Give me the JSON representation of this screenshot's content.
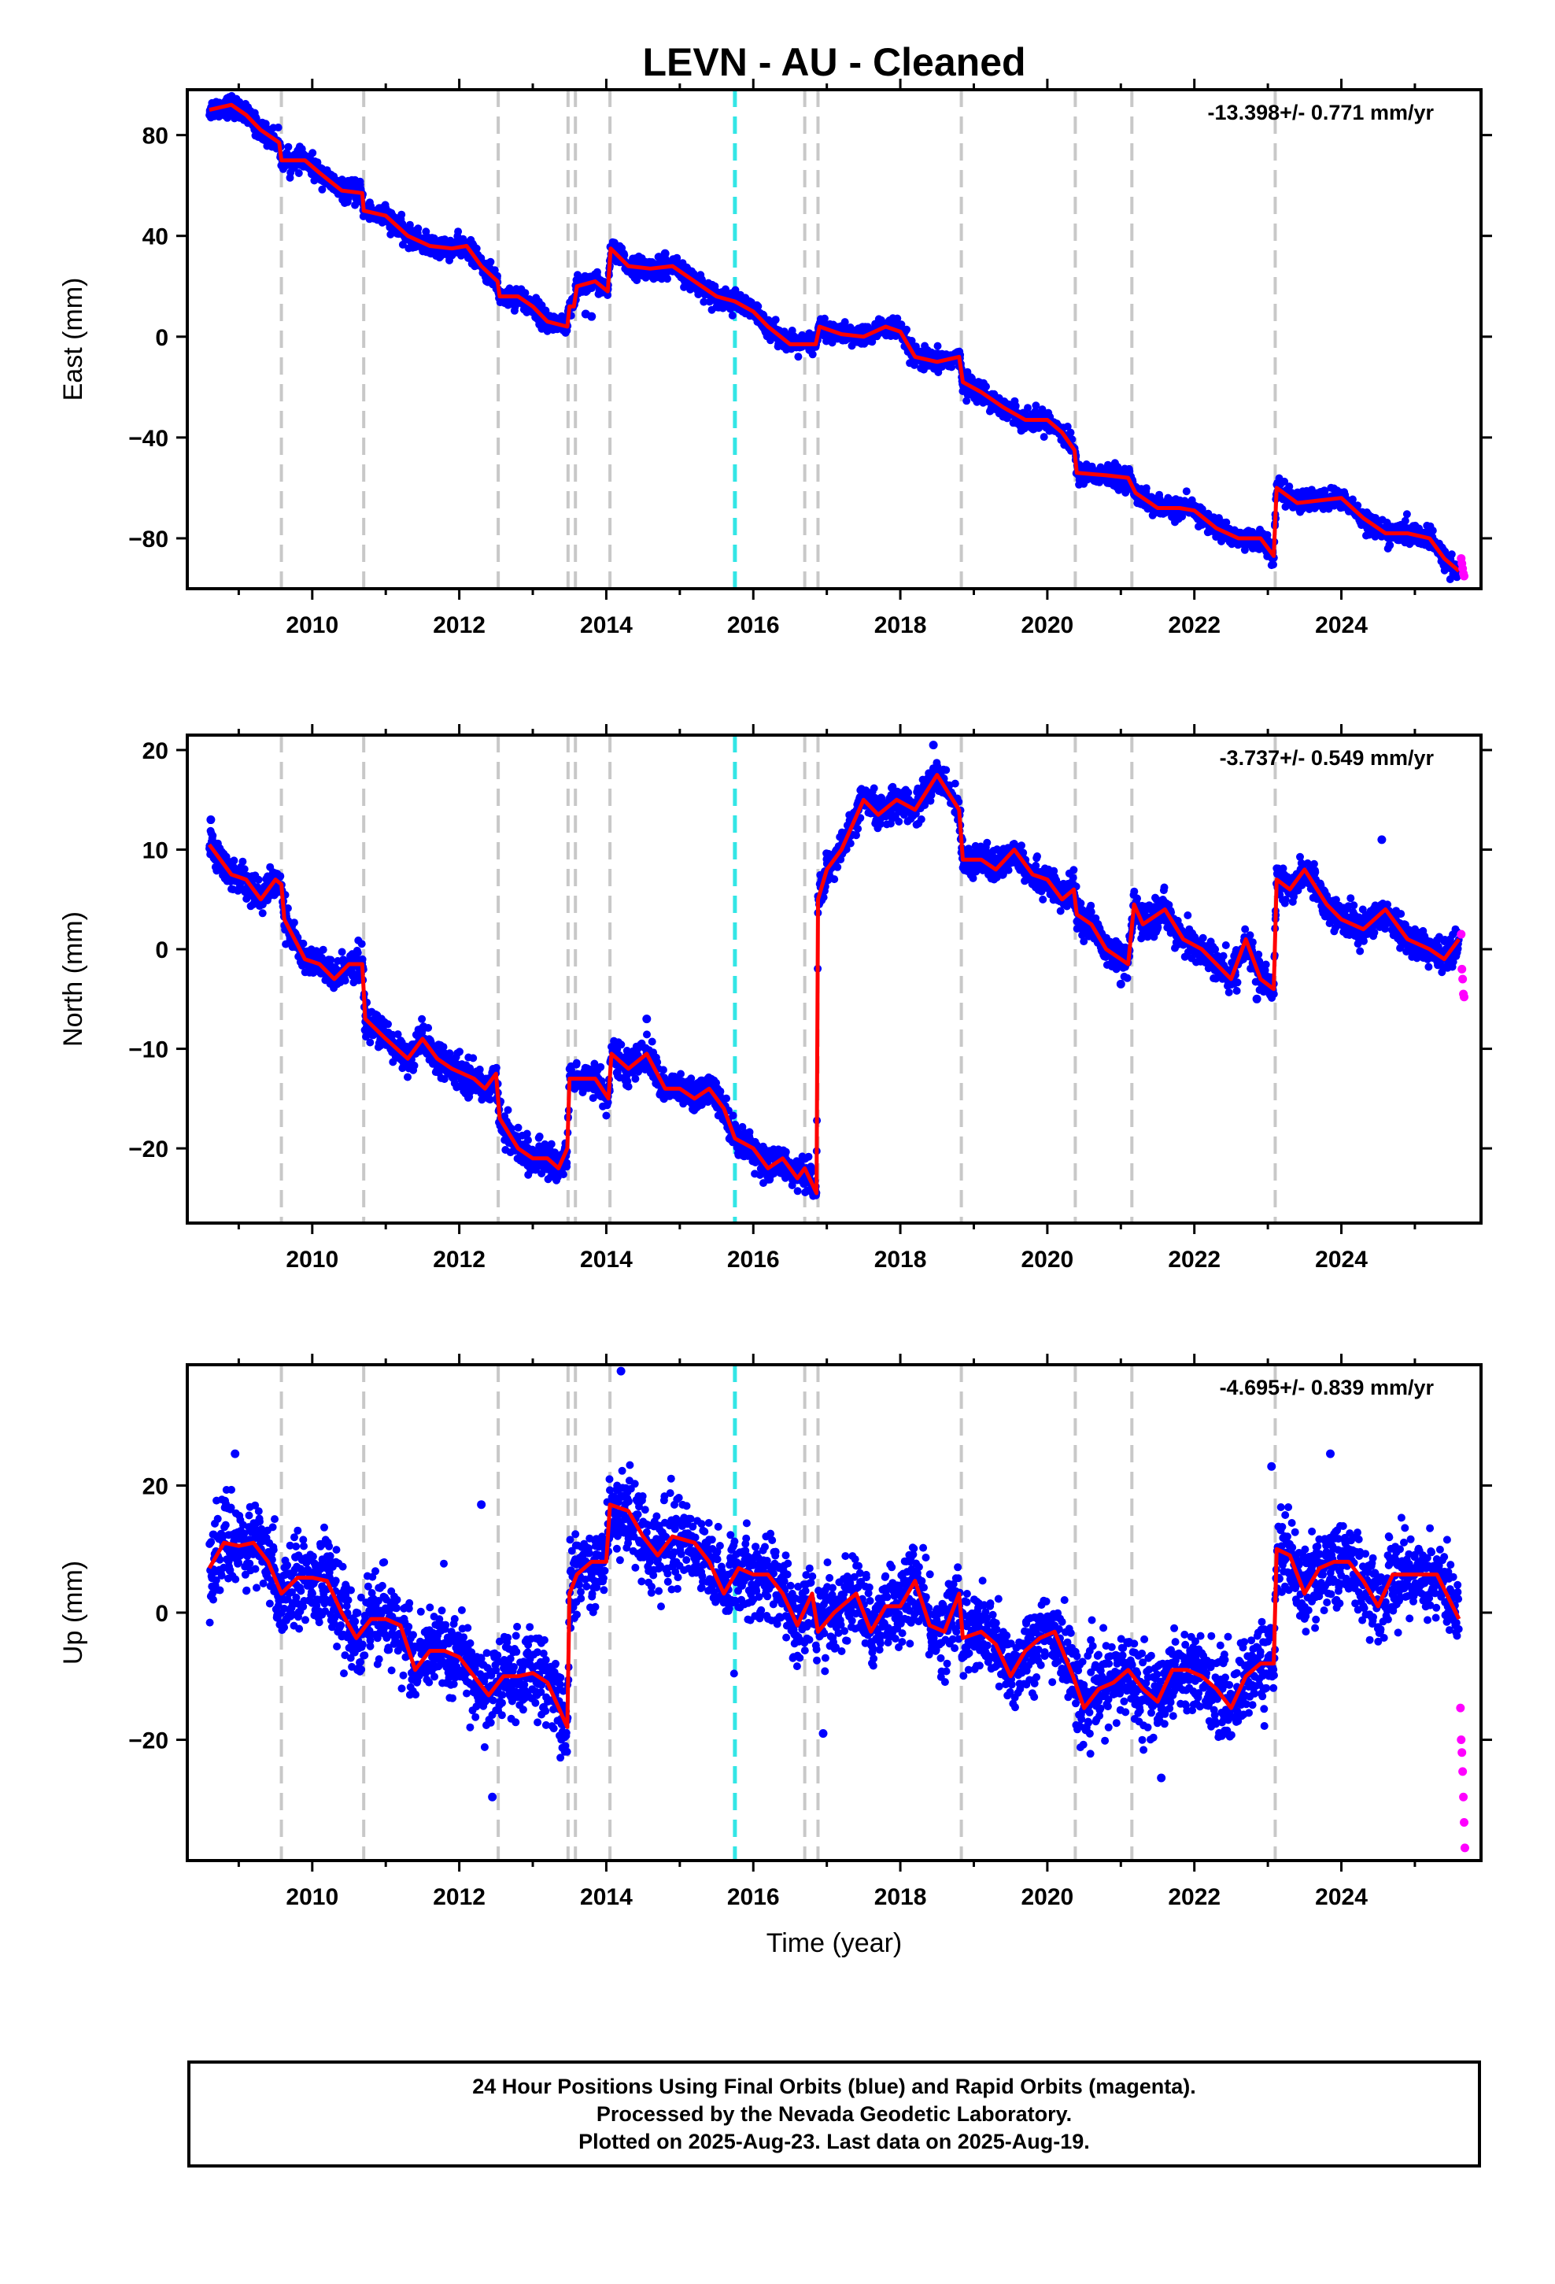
{
  "title": "LEVN  - AU - Cleaned",
  "footer": {
    "line1": "24 Hour Positions Using Final Orbits (blue) and Rapid Orbits (magenta).",
    "line2": "Processed by the Nevada Geodetic Laboratory.",
    "line3": "Plotted on 2025-Aug-23. Last data on 2025-Aug-19."
  },
  "colors": {
    "final_points": "#0000ff",
    "rapid_points": "#ff00ff",
    "model_line": "#ff0000",
    "equipment_change": "#c8c8c8",
    "earthquake_event": "#33e6e6"
  },
  "chart_data": [
    {
      "type": "scatter",
      "panel": "east",
      "ylabel": "East (mm)",
      "xlabel": "",
      "rate_text": "-13.398+/- 0.771 mm/yr",
      "xlim": [
        2008.3,
        2025.9
      ],
      "ylim": [
        -100,
        98
      ],
      "yticks": [
        -80,
        -40,
        0,
        40,
        80
      ],
      "xticks": [
        2010,
        2012,
        2014,
        2016,
        2018,
        2020,
        2022,
        2024
      ],
      "noise": 2.0,
      "events_gray": [
        2009.58,
        2010.7,
        2012.53,
        2013.48,
        2013.58,
        2014.05,
        2016.7,
        2016.88,
        2018.83,
        2020.38,
        2021.15,
        2023.1
      ],
      "events_cyan": [
        2015.75
      ],
      "model": [
        [
          2008.6,
          90
        ],
        [
          2008.9,
          92
        ],
        [
          2009.1,
          88
        ],
        [
          2009.3,
          82
        ],
        [
          2009.55,
          77
        ],
        [
          2009.58,
          70
        ],
        [
          2009.9,
          70
        ],
        [
          2010.1,
          65
        ],
        [
          2010.4,
          58
        ],
        [
          2010.68,
          57
        ],
        [
          2010.7,
          50
        ],
        [
          2011.0,
          48
        ],
        [
          2011.3,
          40
        ],
        [
          2011.6,
          36
        ],
        [
          2011.9,
          35
        ],
        [
          2012.1,
          36
        ],
        [
          2012.3,
          28
        ],
        [
          2012.52,
          22
        ],
        [
          2012.55,
          16
        ],
        [
          2012.8,
          16
        ],
        [
          2013.0,
          12
        ],
        [
          2013.2,
          6
        ],
        [
          2013.47,
          4
        ],
        [
          2013.5,
          12
        ],
        [
          2013.56,
          12
        ],
        [
          2013.6,
          20
        ],
        [
          2013.85,
          22
        ],
        [
          2014.02,
          18
        ],
        [
          2014.06,
          35
        ],
        [
          2014.3,
          28
        ],
        [
          2014.6,
          27
        ],
        [
          2014.9,
          28
        ],
        [
          2015.2,
          22
        ],
        [
          2015.5,
          16
        ],
        [
          2015.75,
          14
        ],
        [
          2016.0,
          10
        ],
        [
          2016.2,
          4
        ],
        [
          2016.5,
          -3
        ],
        [
          2016.85,
          -3
        ],
        [
          2016.9,
          4
        ],
        [
          2017.2,
          1
        ],
        [
          2017.5,
          0
        ],
        [
          2017.8,
          4
        ],
        [
          2018.0,
          2
        ],
        [
          2018.2,
          -8
        ],
        [
          2018.5,
          -10
        ],
        [
          2018.8,
          -8
        ],
        [
          2018.85,
          -18
        ],
        [
          2019.1,
          -22
        ],
        [
          2019.4,
          -28
        ],
        [
          2019.7,
          -33
        ],
        [
          2020.0,
          -33
        ],
        [
          2020.2,
          -38
        ],
        [
          2020.37,
          -45
        ],
        [
          2020.4,
          -54
        ],
        [
          2020.8,
          -55
        ],
        [
          2021.1,
          -56
        ],
        [
          2021.2,
          -62
        ],
        [
          2021.5,
          -68
        ],
        [
          2021.8,
          -68
        ],
        [
          2022.0,
          -69
        ],
        [
          2022.3,
          -76
        ],
        [
          2022.6,
          -80
        ],
        [
          2022.9,
          -80
        ],
        [
          2023.08,
          -87
        ],
        [
          2023.12,
          -60
        ],
        [
          2023.4,
          -66
        ],
        [
          2023.7,
          -65
        ],
        [
          2024.0,
          -64
        ],
        [
          2024.3,
          -72
        ],
        [
          2024.6,
          -78
        ],
        [
          2024.9,
          -78
        ],
        [
          2025.2,
          -80
        ],
        [
          2025.4,
          -88
        ],
        [
          2025.6,
          -93
        ]
      ],
      "highlights": [
        [
          2013.72,
          9
        ],
        [
          2013.8,
          8
        ],
        [
          2014.8,
          33
        ]
      ],
      "rapid": [
        [
          2025.63,
          -88
        ],
        [
          2025.64,
          -90
        ],
        [
          2025.65,
          -92
        ],
        [
          2025.66,
          -94
        ],
        [
          2025.67,
          -95
        ]
      ]
    },
    {
      "type": "scatter",
      "panel": "north",
      "ylabel": "North (mm)",
      "xlabel": "",
      "rate_text": "-3.737+/- 0.549 mm/yr",
      "xlim": [
        2008.3,
        2025.9
      ],
      "ylim": [
        -27.5,
        21.5
      ],
      "yticks": [
        -20,
        -10,
        0,
        10,
        20
      ],
      "xticks": [
        2010,
        2012,
        2014,
        2016,
        2018,
        2020,
        2022,
        2024
      ],
      "noise": 0.8,
      "events_gray": [
        2009.58,
        2010.7,
        2012.53,
        2013.48,
        2013.58,
        2014.05,
        2016.7,
        2016.88,
        2018.83,
        2020.38,
        2021.15,
        2023.1
      ],
      "events_cyan": [
        2015.75
      ],
      "model": [
        [
          2008.6,
          10.5
        ],
        [
          2008.9,
          7.5
        ],
        [
          2009.1,
          7
        ],
        [
          2009.3,
          5
        ],
        [
          2009.5,
          7
        ],
        [
          2009.58,
          6.5
        ],
        [
          2009.62,
          3
        ],
        [
          2009.9,
          -1
        ],
        [
          2010.1,
          -1.5
        ],
        [
          2010.3,
          -3
        ],
        [
          2010.5,
          -1.5
        ],
        [
          2010.68,
          -1.5
        ],
        [
          2010.72,
          -7
        ],
        [
          2011.0,
          -9
        ],
        [
          2011.3,
          -11
        ],
        [
          2011.5,
          -9
        ],
        [
          2011.7,
          -11
        ],
        [
          2011.9,
          -12
        ],
        [
          2012.2,
          -13
        ],
        [
          2012.35,
          -14
        ],
        [
          2012.5,
          -12.5
        ],
        [
          2012.55,
          -17
        ],
        [
          2012.8,
          -20
        ],
        [
          2013.0,
          -21
        ],
        [
          2013.2,
          -21
        ],
        [
          2013.35,
          -22
        ],
        [
          2013.47,
          -20
        ],
        [
          2013.5,
          -13
        ],
        [
          2013.56,
          -13
        ],
        [
          2013.6,
          -13
        ],
        [
          2013.85,
          -13
        ],
        [
          2014.03,
          -15
        ],
        [
          2014.07,
          -10.5
        ],
        [
          2014.3,
          -12
        ],
        [
          2014.55,
          -10.5
        ],
        [
          2014.8,
          -14
        ],
        [
          2015.0,
          -14
        ],
        [
          2015.2,
          -15
        ],
        [
          2015.4,
          -14
        ],
        [
          2015.6,
          -16
        ],
        [
          2015.75,
          -19
        ],
        [
          2016.0,
          -20
        ],
        [
          2016.2,
          -22
        ],
        [
          2016.4,
          -21
        ],
        [
          2016.6,
          -23
        ],
        [
          2016.7,
          -22
        ],
        [
          2016.86,
          -24.5
        ],
        [
          2016.88,
          5
        ],
        [
          2017.0,
          8
        ],
        [
          2017.2,
          10
        ],
        [
          2017.5,
          15
        ],
        [
          2017.7,
          13.5
        ],
        [
          2017.95,
          15
        ],
        [
          2018.2,
          14
        ],
        [
          2018.5,
          17.5
        ],
        [
          2018.8,
          14
        ],
        [
          2018.85,
          9
        ],
        [
          2019.1,
          9
        ],
        [
          2019.3,
          8
        ],
        [
          2019.55,
          10
        ],
        [
          2019.8,
          7.5
        ],
        [
          2020.0,
          7
        ],
        [
          2020.2,
          5
        ],
        [
          2020.36,
          6
        ],
        [
          2020.4,
          3.5
        ],
        [
          2020.6,
          2.5
        ],
        [
          2020.8,
          0
        ],
        [
          2021.0,
          -1
        ],
        [
          2021.1,
          -1.5
        ],
        [
          2021.18,
          4.5
        ],
        [
          2021.3,
          2.5
        ],
        [
          2021.6,
          4
        ],
        [
          2021.85,
          1
        ],
        [
          2022.1,
          0
        ],
        [
          2022.3,
          -1.5
        ],
        [
          2022.5,
          -3
        ],
        [
          2022.7,
          1
        ],
        [
          2022.9,
          -3
        ],
        [
          2023.08,
          -4
        ],
        [
          2023.12,
          7
        ],
        [
          2023.3,
          6
        ],
        [
          2023.5,
          8
        ],
        [
          2023.8,
          4.5
        ],
        [
          2024.0,
          3
        ],
        [
          2024.3,
          2
        ],
        [
          2024.6,
          4
        ],
        [
          2024.9,
          1
        ],
        [
          2025.2,
          0
        ],
        [
          2025.4,
          -1
        ],
        [
          2025.6,
          1
        ]
      ],
      "highlights": [
        [
          2008.62,
          13
        ],
        [
          2014.55,
          -7
        ],
        [
          2018.45,
          20.5
        ],
        [
          2021.0,
          -3.5
        ],
        [
          2024.55,
          11
        ],
        [
          2022.85,
          -5
        ]
      ],
      "rapid": [
        [
          2025.63,
          1.5
        ],
        [
          2025.64,
          -2
        ],
        [
          2025.65,
          -3
        ],
        [
          2025.66,
          -4.5
        ],
        [
          2025.67,
          -4.8
        ]
      ]
    },
    {
      "type": "scatter",
      "panel": "up",
      "ylabel": "Up (mm)",
      "xlabel": "Time (year)",
      "rate_text": "-4.695+/- 0.839 mm/yr",
      "xlim": [
        2008.3,
        2025.9
      ],
      "ylim": [
        -39,
        39
      ],
      "yticks": [
        -20,
        0,
        20
      ],
      "xticks": [
        2010,
        2012,
        2014,
        2016,
        2018,
        2020,
        2022,
        2024
      ],
      "noise": 3.2,
      "events_gray": [
        2009.58,
        2010.7,
        2012.53,
        2013.48,
        2013.58,
        2014.05,
        2016.7,
        2016.88,
        2018.83,
        2020.38,
        2021.15,
        2023.1
      ],
      "events_cyan": [
        2015.75
      ],
      "model": [
        [
          2008.6,
          7
        ],
        [
          2008.8,
          11
        ],
        [
          2009.0,
          10.5
        ],
        [
          2009.2,
          11
        ],
        [
          2009.4,
          8
        ],
        [
          2009.58,
          3
        ],
        [
          2009.8,
          5.5
        ],
        [
          2010.0,
          5.5
        ],
        [
          2010.2,
          5
        ],
        [
          2010.4,
          0
        ],
        [
          2010.6,
          -4
        ],
        [
          2010.8,
          -1
        ],
        [
          2011.0,
          -1
        ],
        [
          2011.2,
          -2
        ],
        [
          2011.4,
          -9
        ],
        [
          2011.6,
          -6
        ],
        [
          2011.8,
          -6
        ],
        [
          2012.0,
          -7
        ],
        [
          2012.2,
          -10
        ],
        [
          2012.4,
          -13
        ],
        [
          2012.6,
          -10
        ],
        [
          2012.8,
          -10
        ],
        [
          2013.0,
          -9.5
        ],
        [
          2013.2,
          -11
        ],
        [
          2013.47,
          -18
        ],
        [
          2013.5,
          3
        ],
        [
          2013.6,
          6
        ],
        [
          2013.8,
          8
        ],
        [
          2014.0,
          8
        ],
        [
          2014.05,
          17
        ],
        [
          2014.3,
          16
        ],
        [
          2014.5,
          12
        ],
        [
          2014.7,
          9
        ],
        [
          2014.9,
          12
        ],
        [
          2015.2,
          11
        ],
        [
          2015.4,
          8
        ],
        [
          2015.6,
          3
        ],
        [
          2015.8,
          7
        ],
        [
          2016.0,
          6
        ],
        [
          2016.2,
          6
        ],
        [
          2016.4,
          3
        ],
        [
          2016.6,
          -2
        ],
        [
          2016.8,
          3
        ],
        [
          2016.88,
          -3
        ],
        [
          2017.1,
          0
        ],
        [
          2017.4,
          3
        ],
        [
          2017.6,
          -3
        ],
        [
          2017.8,
          1
        ],
        [
          2018.0,
          1
        ],
        [
          2018.2,
          5
        ],
        [
          2018.4,
          -2
        ],
        [
          2018.6,
          -3
        ],
        [
          2018.8,
          3
        ],
        [
          2018.85,
          -4
        ],
        [
          2019.1,
          -3
        ],
        [
          2019.3,
          -5
        ],
        [
          2019.5,
          -10
        ],
        [
          2019.7,
          -6
        ],
        [
          2019.9,
          -4
        ],
        [
          2020.1,
          -3
        ],
        [
          2020.35,
          -10
        ],
        [
          2020.5,
          -15
        ],
        [
          2020.7,
          -12
        ],
        [
          2020.9,
          -11
        ],
        [
          2021.1,
          -9
        ],
        [
          2021.3,
          -12
        ],
        [
          2021.5,
          -14
        ],
        [
          2021.7,
          -9
        ],
        [
          2021.9,
          -9
        ],
        [
          2022.1,
          -10
        ],
        [
          2022.3,
          -12
        ],
        [
          2022.5,
          -15
        ],
        [
          2022.7,
          -10
        ],
        [
          2022.9,
          -8
        ],
        [
          2023.08,
          -8
        ],
        [
          2023.12,
          10
        ],
        [
          2023.3,
          9
        ],
        [
          2023.5,
          3
        ],
        [
          2023.7,
          7
        ],
        [
          2023.9,
          8
        ],
        [
          2024.1,
          8
        ],
        [
          2024.3,
          5
        ],
        [
          2024.5,
          1
        ],
        [
          2024.7,
          6
        ],
        [
          2024.9,
          6
        ],
        [
          2025.1,
          6
        ],
        [
          2025.3,
          6
        ],
        [
          2025.6,
          -1
        ]
      ],
      "highlights": [
        [
          2014.2,
          38
        ],
        [
          2008.95,
          25
        ],
        [
          2012.3,
          17
        ],
        [
          2012.45,
          -29
        ],
        [
          2023.05,
          23
        ],
        [
          2023.85,
          25
        ],
        [
          2021.55,
          -26
        ],
        [
          2016.95,
          -19
        ]
      ],
      "rapid": [
        [
          2025.62,
          -15
        ],
        [
          2025.63,
          -20
        ],
        [
          2025.64,
          -22
        ],
        [
          2025.65,
          -25
        ],
        [
          2025.66,
          -29
        ],
        [
          2025.67,
          -33
        ],
        [
          2025.68,
          -37
        ]
      ]
    }
  ]
}
